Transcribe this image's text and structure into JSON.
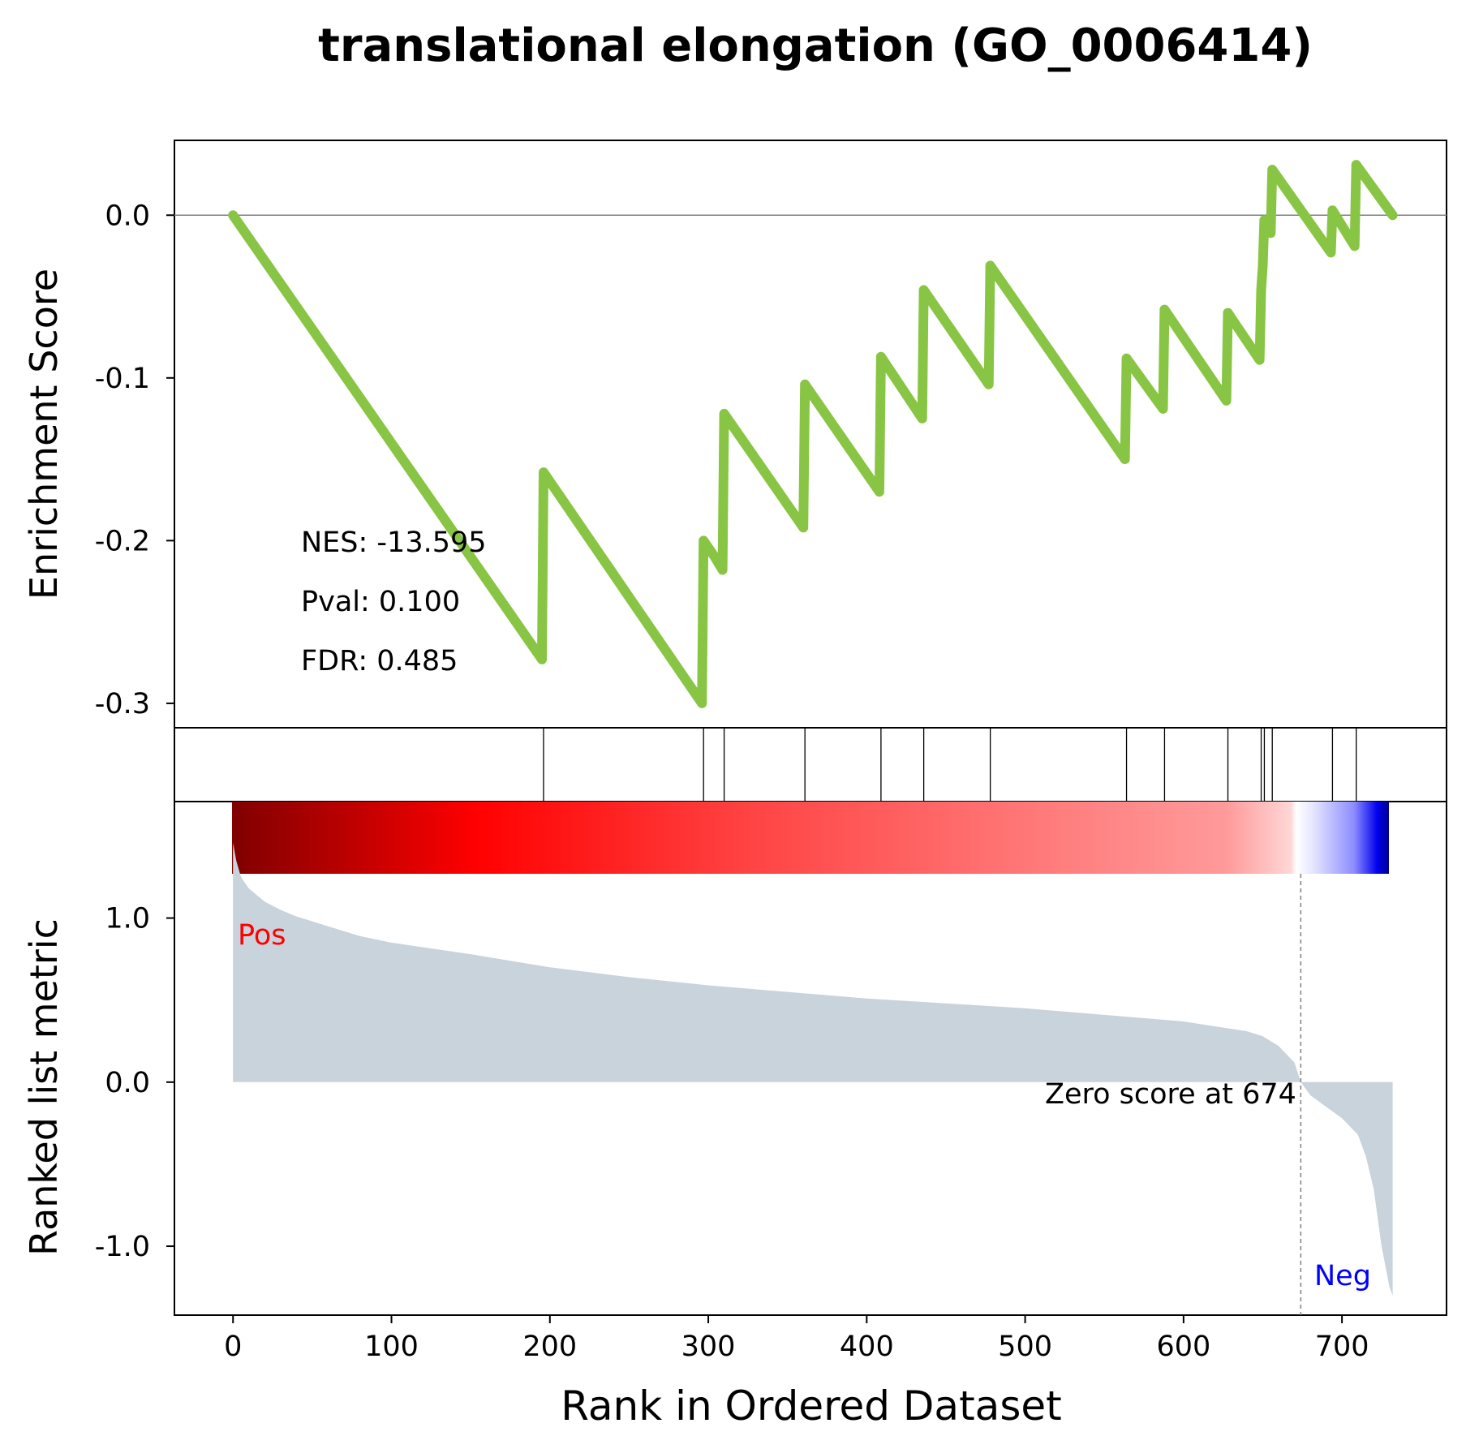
{
  "chart_data": {
    "type": "line",
    "title": "translational elongation (GO_0006414)",
    "xlabel": "Rank in Ordered Dataset",
    "xlim": [
      -37,
      766
    ],
    "x_ticks": [
      0,
      100,
      200,
      300,
      400,
      500,
      600,
      700
    ],
    "x_tick_labels": [
      "0",
      "100",
      "200",
      "300",
      "400",
      "500",
      "600",
      "700"
    ],
    "panels": {
      "enrichment": {
        "ylabel": "Enrichment Score",
        "ylim": [
          -0.315,
          0.046
        ],
        "y_ticks": [
          0.0,
          -0.1,
          -0.2,
          -0.3
        ],
        "y_tick_labels": [
          "0.0",
          "-0.1",
          "-0.2",
          "-0.3"
        ],
        "zero_line": true,
        "line_color": "#88c544",
        "series": [
          {
            "x": [
              0,
              195,
              196,
              296,
              297,
              304,
              309,
              310,
              360,
              361,
              408,
              409,
              435,
              436,
              477,
              478,
              563,
              564,
              587,
              588,
              627,
              628,
              648,
              649,
              650,
              651,
              655,
              656,
              693,
              694,
              708,
              709,
              732
            ],
            "y": [
              0.0,
              -0.273,
              -0.158,
              -0.3,
              -0.2,
              -0.21,
              -0.218,
              -0.122,
              -0.192,
              -0.104,
              -0.17,
              -0.087,
              -0.125,
              -0.046,
              -0.104,
              -0.031,
              -0.15,
              -0.088,
              -0.119,
              -0.058,
              -0.114,
              -0.06,
              -0.089,
              -0.046,
              -0.031,
              -0.003,
              -0.011,
              0.028,
              -0.023,
              0.003,
              -0.019,
              0.031,
              0.0
            ]
          }
        ],
        "annotations": {
          "nes": "NES: -13.595",
          "pval": "Pval: 0.100",
          "fdr": "FDR: 0.485"
        }
      },
      "hits": {
        "positions": [
          196,
          297,
          310,
          361,
          409,
          436,
          478,
          564,
          588,
          628,
          649,
          651,
          656,
          694,
          709
        ]
      },
      "ranked_metric": {
        "ylabel": "Ranked list metric",
        "ylim": [
          -1.42,
          1.71
        ],
        "y_ticks": [
          1.0,
          0.0,
          -1.0
        ],
        "y_tick_labels": [
          "1.0",
          "0.0",
          "-1.0"
        ],
        "fill_color": "#c8d3dc",
        "x": [
          0,
          2,
          5,
          10,
          20,
          30,
          40,
          50,
          60,
          80,
          100,
          150,
          200,
          250,
          300,
          350,
          400,
          450,
          500,
          550,
          600,
          620,
          640,
          650,
          660,
          670,
          674,
          680,
          690,
          700,
          710,
          715,
          720,
          725,
          728,
          730,
          732
        ],
        "values": [
          1.46,
          1.35,
          1.25,
          1.18,
          1.1,
          1.05,
          1.01,
          0.98,
          0.95,
          0.89,
          0.85,
          0.78,
          0.7,
          0.64,
          0.59,
          0.55,
          0.51,
          0.48,
          0.45,
          0.41,
          0.37,
          0.34,
          0.31,
          0.28,
          0.22,
          0.12,
          0.0,
          -0.08,
          -0.15,
          -0.22,
          -0.32,
          -0.45,
          -0.65,
          -1.0,
          -1.15,
          -1.25,
          -1.3
        ],
        "pos_label": "Pos",
        "neg_label": "Neg",
        "pos_color": "#ff0000",
        "neg_color": "#0000ff",
        "zero_cross_rank": 674,
        "zero_cross_label": "Zero score at 674"
      }
    },
    "colorbar": {
      "colormap": "seismic",
      "range_ranks": [
        0,
        732
      ]
    },
    "grid": false
  }
}
